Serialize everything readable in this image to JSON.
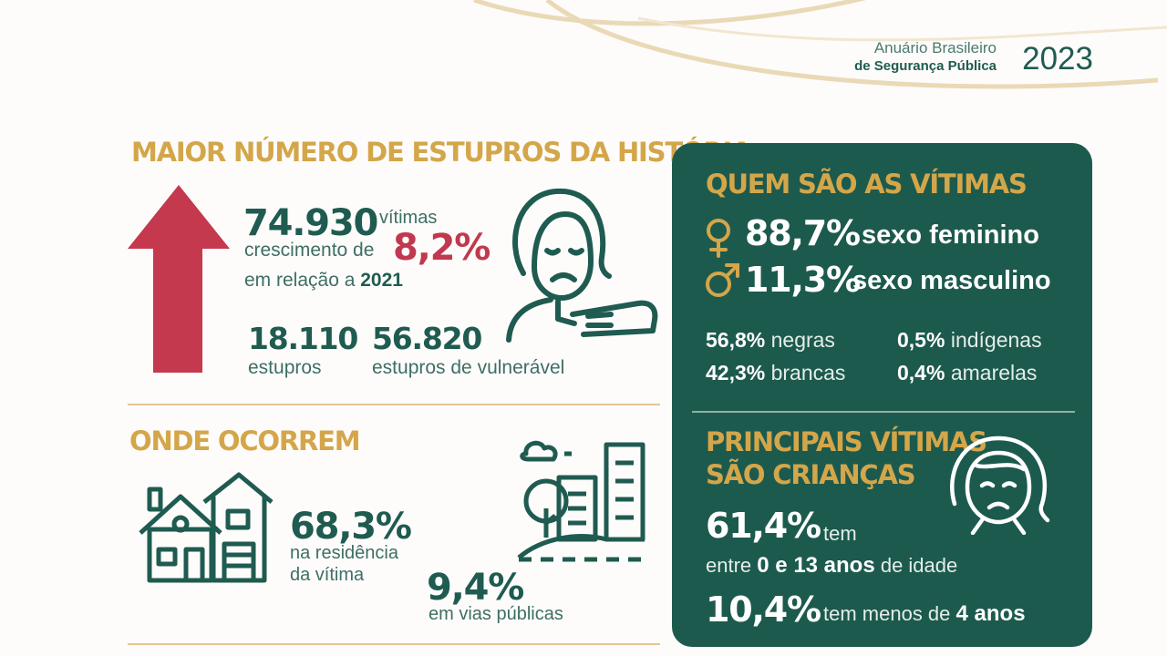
{
  "header": {
    "brand_line1": "Anuário Brasileiro",
    "brand_line2": "de Segurança Pública",
    "year": "2023"
  },
  "section_record": {
    "title": "MAIOR NÚMERO DE ESTUPROS DA HISTÓRIA",
    "total_value": "74.930",
    "total_unit": "vítimas",
    "growth_prefix": "crescimento de",
    "growth_value": "8,2%",
    "comparison_prefix": "em relação a",
    "comparison_year": "2021",
    "stat1_value": "18.110",
    "stat1_label": "estupros",
    "stat2_value": "56.820",
    "stat2_label": "estupros de vulnerável"
  },
  "section_where": {
    "title": "ONDE OCORREM",
    "home_value": "68,3%",
    "home_label_line1": "na residência",
    "home_label_line2": "da vítima",
    "street_value": "9,4%",
    "street_label": "em vias públicas"
  },
  "section_victims": {
    "title": "QUEM SÃO AS VÍTIMAS",
    "female_value": "88,7%",
    "female_label": "sexo feminino",
    "male_value": "11,3%",
    "male_label": "sexo masculino",
    "race": [
      {
        "value": "56,8%",
        "label": "negras"
      },
      {
        "value": "0,5%",
        "label": "indígenas"
      },
      {
        "value": "42,3%",
        "label": "brancas"
      },
      {
        "value": "0,4%",
        "label": "amarelas"
      }
    ]
  },
  "section_children": {
    "title_line1": "PRINCIPAIS VÍTIMAS",
    "title_line2": "SÃO CRIANÇAS",
    "stat1_value": "61,4%",
    "stat1_suffix": "tem",
    "stat1_line2_prefix": "entre",
    "stat1_range": "0 e 13 anos",
    "stat1_line2_suffix": "de idade",
    "stat2_value": "10,4%",
    "stat2_prefix": "tem menos de",
    "stat2_emph": "4 anos"
  },
  "icons": [
    "up-arrow-icon",
    "sad-woman-icon",
    "house-icon",
    "city-icon",
    "female-symbol-icon",
    "male-symbol-icon",
    "sad-child-icon"
  ],
  "colors": {
    "teal": "#1f5b50",
    "gold": "#d4a64a",
    "red": "#c0394f",
    "panel": "#1d5a4e"
  }
}
